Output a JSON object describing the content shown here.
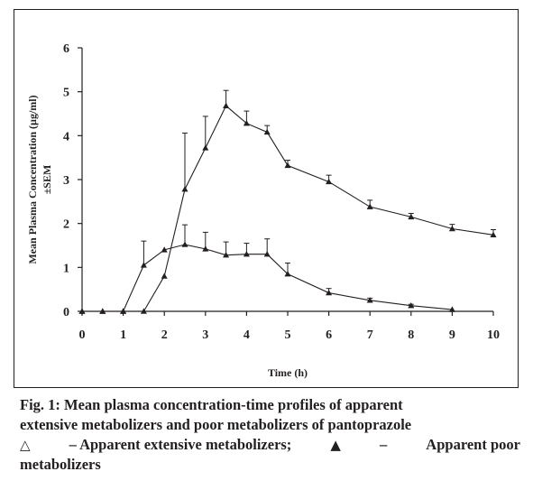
{
  "chart_data": {
    "type": "line",
    "xlabel": "Time (h)",
    "ylabel_line1": "Mean Plasma Concentration (µg/ml)",
    "ylabel_line2": "±SEM",
    "xlim": [
      0,
      10
    ],
    "ylim": [
      0,
      6
    ],
    "xticks": [
      0,
      1,
      2,
      3,
      4,
      5,
      6,
      7,
      8,
      9,
      10
    ],
    "yticks": [
      0,
      1,
      2,
      3,
      4,
      5,
      6
    ],
    "grid": false,
    "series": [
      {
        "name": "Apparent extensive metabolizers",
        "marker": "open-triangle",
        "x": [
          0,
          0.5,
          1,
          1.5,
          2,
          2.5,
          3,
          3.5,
          4,
          4.5,
          5,
          6,
          7,
          8,
          9
        ],
        "y": [
          0,
          0,
          0,
          1.05,
          1.4,
          1.52,
          1.42,
          1.28,
          1.3,
          1.3,
          0.85,
          0.42,
          0.25,
          0.13,
          0.04
        ],
        "sem": [
          0,
          0,
          0,
          0.55,
          0.0,
          0.45,
          0.38,
          0.3,
          0.25,
          0.35,
          0.25,
          0.1,
          0.05,
          0.03,
          0.0
        ]
      },
      {
        "name": "Apparent poor metabolizers",
        "marker": "filled-triangle",
        "x": [
          0,
          0.5,
          1,
          1.5,
          2,
          2.5,
          3,
          3.5,
          4,
          4.5,
          5,
          6,
          7,
          8,
          9,
          10
        ],
        "y": [
          0,
          0,
          0,
          0,
          0.8,
          2.78,
          3.72,
          4.68,
          4.28,
          4.08,
          3.32,
          2.95,
          2.38,
          2.15,
          1.88,
          1.74
        ],
        "sem": [
          0,
          0,
          0,
          0,
          0.0,
          1.28,
          0.72,
          0.35,
          0.28,
          0.15,
          0.12,
          0.15,
          0.15,
          0.08,
          0.1,
          0.12
        ]
      }
    ]
  },
  "caption": {
    "line1": "Fig. 1: Mean plasma concentration-time profiles of apparent",
    "line2": "extensive metabolizers and poor metabolizers of pantoprazole",
    "open_symbol": "△",
    "extensive_text": "– Apparent extensive metabolizers;",
    "filled_symbol": "▲",
    "poor_text_a": "–",
    "poor_text_b": "Apparent poor",
    "line4": "metabolizers"
  }
}
